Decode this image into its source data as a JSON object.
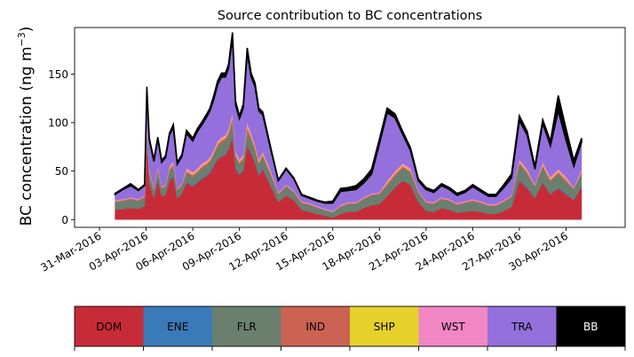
{
  "chart_data": {
    "type": "area",
    "title": "Source contribution to BC concentrations",
    "ylabel": "BC concentration (ng m⁻³)",
    "ylabel_main": "BC concentration (ng m",
    "ylabel_sup": "−3",
    "ylabel_close": ")",
    "xlabel": "",
    "ylim": [
      -8,
      198
    ],
    "yticks": [
      0,
      50,
      100,
      150
    ],
    "xlim": [
      -1.6,
      33.8
    ],
    "xticks": [
      {
        "label": "31-Mar-2016",
        "day": 0
      },
      {
        "label": "03-Apr-2016",
        "day": 3
      },
      {
        "label": "06-Apr-2016",
        "day": 6
      },
      {
        "label": "09-Apr-2016",
        "day": 9
      },
      {
        "label": "12-Apr-2016",
        "day": 12
      },
      {
        "label": "15-Apr-2016",
        "day": 15
      },
      {
        "label": "18-Apr-2016",
        "day": 18
      },
      {
        "label": "21-Apr-2016",
        "day": 21
      },
      {
        "label": "24-Apr-2016",
        "day": 24
      },
      {
        "label": "27-Apr-2016",
        "day": 27
      },
      {
        "label": "30-Apr-2016",
        "day": 30
      }
    ],
    "x_days": [
      1.0,
      1.5,
      2.0,
      2.5,
      2.9,
      3.05,
      3.2,
      3.5,
      3.75,
      4.0,
      4.25,
      4.5,
      4.75,
      5.0,
      5.3,
      5.6,
      6.0,
      6.3,
      6.6,
      6.9,
      7.1,
      7.35,
      7.6,
      7.85,
      8.1,
      8.3,
      8.55,
      8.75,
      9.0,
      9.25,
      9.5,
      9.75,
      10.0,
      10.25,
      10.5,
      11.0,
      11.5,
      12.0,
      12.5,
      13.0,
      13.5,
      14.0,
      14.5,
      15.0,
      15.5,
      16.0,
      16.5,
      17.0,
      17.5,
      18.0,
      18.5,
      19.0,
      19.5,
      20.0,
      20.5,
      21.0,
      21.5,
      22.0,
      22.5,
      23.0,
      23.5,
      24.0,
      24.5,
      25.0,
      25.5,
      26.0,
      26.5,
      27.0,
      27.5,
      28.0,
      28.5,
      29.0,
      29.5,
      30.0,
      30.5,
      31.0
    ],
    "series": [
      {
        "name": "DOM",
        "color": "#c82b38",
        "values": [
          10,
          11,
          12,
          11,
          14,
          82,
          38,
          22,
          40,
          24,
          26,
          40,
          44,
          22,
          27,
          38,
          34,
          38,
          42,
          45,
          48,
          55,
          62,
          65,
          67,
          72,
          85,
          52,
          46,
          50,
          76,
          68,
          58,
          45,
          52,
          35,
          18,
          25,
          20,
          10,
          8,
          6,
          4,
          2,
          6,
          8,
          8,
          12,
          15,
          16,
          24,
          33,
          40,
          36,
          18,
          9,
          8,
          12,
          10,
          7,
          8,
          9,
          8,
          6,
          6,
          9,
          13,
          40,
          32,
          22,
          38,
          26,
          32,
          26,
          20,
          34
        ]
      },
      {
        "name": "ENE",
        "color": "#3a7ab8",
        "values": [
          0,
          0,
          0,
          0,
          0,
          1,
          0,
          0,
          1,
          0,
          0,
          1,
          1,
          0,
          0,
          1,
          1,
          1,
          1,
          1,
          1,
          1,
          1,
          1,
          1,
          1,
          1,
          1,
          1,
          1,
          1,
          1,
          1,
          1,
          1,
          0,
          0,
          0,
          0,
          0,
          0,
          0,
          0,
          0,
          0,
          0,
          0,
          0,
          0,
          0,
          0,
          0,
          0,
          0,
          0,
          0,
          0,
          0,
          0,
          0,
          0,
          0,
          0,
          0,
          0,
          0,
          0,
          1,
          1,
          0,
          1,
          0,
          1,
          1,
          0,
          1
        ]
      },
      {
        "name": "FLR",
        "color": "#6b7f6f",
        "values": [
          8,
          8,
          9,
          8,
          9,
          10,
          9,
          8,
          9,
          8,
          8,
          9,
          10,
          8,
          8,
          9,
          9,
          9,
          10,
          10,
          10,
          11,
          12,
          13,
          13,
          14,
          15,
          12,
          10,
          11,
          14,
          13,
          12,
          11,
          12,
          11,
          8,
          9,
          8,
          7,
          7,
          6,
          6,
          6,
          7,
          8,
          8,
          9,
          10,
          10,
          11,
          12,
          13,
          12,
          10,
          8,
          8,
          9,
          9,
          8,
          9,
          10,
          9,
          8,
          8,
          9,
          10,
          16,
          14,
          12,
          15,
          13,
          14,
          12,
          11,
          12
        ]
      },
      {
        "name": "IND",
        "color": "#cc6352",
        "values": [
          1,
          1,
          1,
          1,
          1,
          3,
          2,
          1,
          2,
          1,
          1,
          2,
          2,
          1,
          1,
          2,
          2,
          2,
          2,
          2,
          2,
          2,
          3,
          3,
          3,
          3,
          4,
          2,
          2,
          2,
          4,
          3,
          3,
          2,
          2,
          2,
          1,
          1,
          1,
          1,
          1,
          1,
          0,
          0,
          1,
          1,
          1,
          1,
          1,
          1,
          2,
          2,
          2,
          2,
          1,
          1,
          1,
          1,
          1,
          1,
          1,
          1,
          1,
          1,
          1,
          1,
          1,
          2,
          2,
          1,
          2,
          2,
          2,
          2,
          1,
          2
        ]
      },
      {
        "name": "SHP",
        "color": "#e6d02c",
        "values": [
          0,
          0,
          0,
          0,
          0,
          1,
          1,
          0,
          1,
          0,
          0,
          1,
          1,
          0,
          0,
          1,
          1,
          1,
          1,
          1,
          1,
          1,
          1,
          1,
          1,
          1,
          2,
          1,
          1,
          1,
          2,
          1,
          1,
          1,
          1,
          1,
          0,
          0,
          0,
          0,
          0,
          0,
          0,
          0,
          0,
          0,
          0,
          0,
          0,
          0,
          1,
          1,
          1,
          1,
          0,
          0,
          0,
          0,
          0,
          0,
          0,
          0,
          0,
          0,
          0,
          0,
          0,
          1,
          1,
          0,
          1,
          1,
          1,
          1,
          0,
          1
        ]
      },
      {
        "name": "WST",
        "color": "#f187c5",
        "values": [
          1,
          1,
          1,
          1,
          1,
          2,
          2,
          1,
          2,
          1,
          1,
          2,
          2,
          1,
          1,
          2,
          2,
          2,
          2,
          2,
          2,
          2,
          2,
          2,
          2,
          3,
          3,
          2,
          2,
          2,
          3,
          3,
          2,
          2,
          2,
          2,
          1,
          1,
          1,
          1,
          1,
          1,
          1,
          1,
          1,
          1,
          1,
          1,
          1,
          1,
          2,
          2,
          2,
          2,
          1,
          1,
          1,
          1,
          1,
          1,
          1,
          1,
          1,
          1,
          1,
          1,
          1,
          2,
          2,
          1,
          2,
          2,
          2,
          2,
          1,
          2
        ]
      },
      {
        "name": "TRA",
        "color": "#9370db",
        "values": [
          6,
          10,
          12,
          9,
          10,
          35,
          30,
          28,
          28,
          25,
          28,
          32,
          35,
          25,
          28,
          36,
          32,
          38,
          40,
          45,
          48,
          52,
          58,
          62,
          60,
          62,
          78,
          48,
          42,
          48,
          72,
          58,
          60,
          50,
          38,
          22,
          12,
          16,
          12,
          6,
          5,
          5,
          6,
          8,
          14,
          12,
          13,
          15,
          20,
          50,
          70,
          55,
          30,
          18,
          10,
          12,
          10,
          12,
          10,
          8,
          9,
          13,
          10,
          8,
          8,
          13,
          18,
          40,
          35,
          16,
          40,
          32,
          60,
          38,
          22,
          28
        ]
      },
      {
        "name": "BB",
        "color": "#000000",
        "values": [
          1,
          1,
          2,
          1,
          1,
          3,
          2,
          2,
          2,
          2,
          2,
          2,
          3,
          2,
          2,
          3,
          3,
          3,
          3,
          3,
          3,
          4,
          4,
          4,
          4,
          4,
          5,
          4,
          3,
          4,
          5,
          4,
          4,
          3,
          3,
          2,
          1,
          1,
          1,
          1,
          1,
          1,
          1,
          2,
          3,
          3,
          4,
          4,
          5,
          5,
          5,
          4,
          3,
          3,
          2,
          2,
          2,
          2,
          2,
          2,
          2,
          2,
          2,
          2,
          2,
          3,
          4,
          5,
          4,
          3,
          4,
          5,
          16,
          12,
          6,
          4
        ]
      }
    ]
  }
}
